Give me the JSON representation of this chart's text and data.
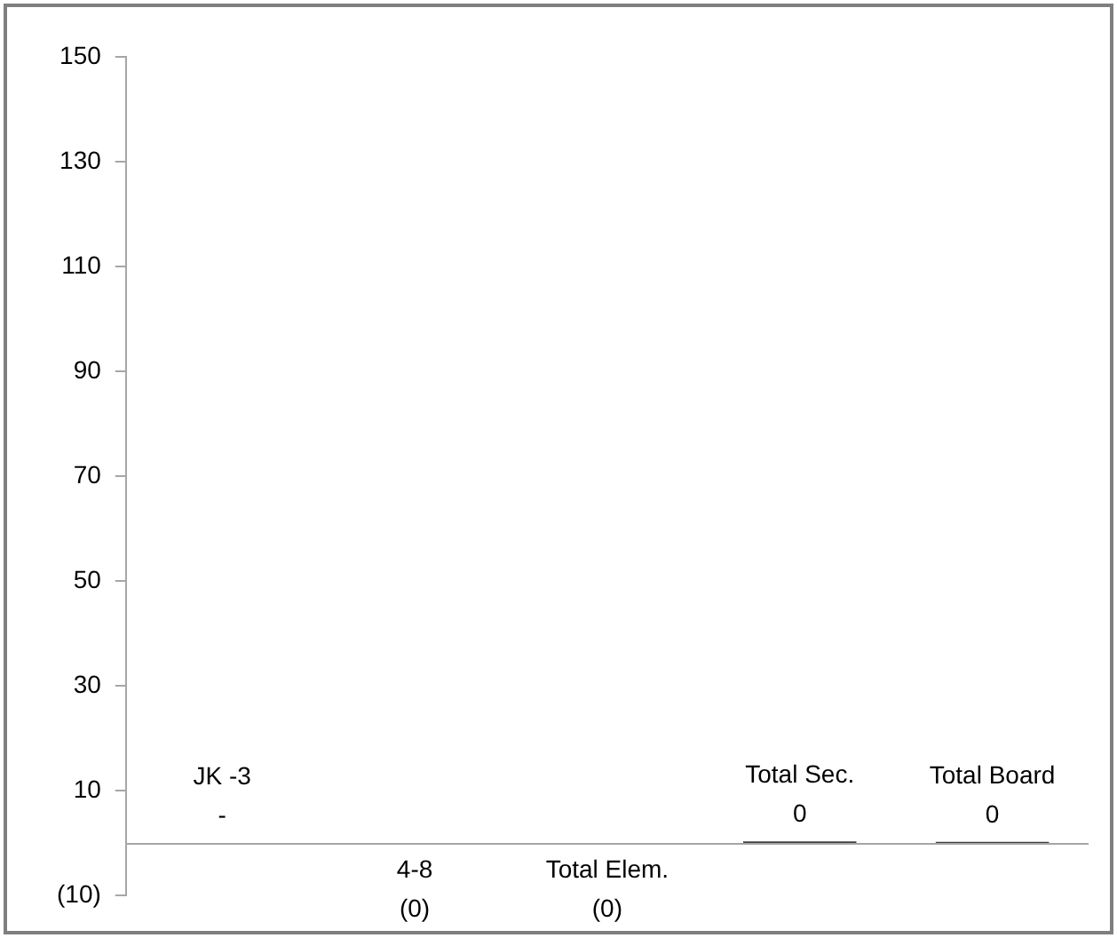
{
  "chart_data": {
    "type": "bar",
    "categories": [
      "JK -3",
      "4-8",
      "Total Elem.",
      "Total Sec.",
      "Total Board"
    ],
    "values": [
      0,
      -0.3,
      -0.3,
      0.3,
      0.2
    ],
    "color": "#404040",
    "value_labels": [
      "-",
      "(0)",
      "(0)",
      "0",
      "0"
    ],
    "ylim": [
      -10,
      150
    ],
    "yticks": [
      {
        "value": -10,
        "label": "(10)"
      },
      10,
      30,
      50,
      70,
      90,
      110,
      130,
      150
    ],
    "tick_labels": "y",
    "grid": false,
    "legend": false
  }
}
